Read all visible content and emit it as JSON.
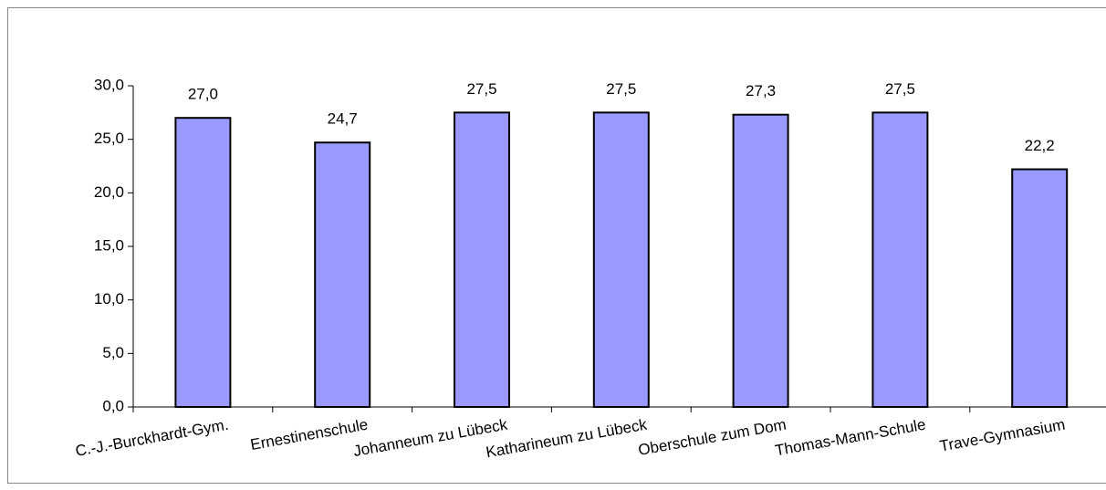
{
  "chart_data": {
    "type": "bar",
    "categories": [
      "C.-J.-Burckhardt-Gym.",
      "Ernestinenschule",
      "Johanneum zu Lübeck",
      "Katharineum zu Lübeck",
      "Oberschule zum Dom",
      "Thomas-Mann-Schule",
      "Trave-Gymnasium"
    ],
    "values": [
      27.0,
      24.7,
      27.5,
      27.5,
      27.3,
      27.5,
      22.2
    ],
    "value_labels": [
      "27,0",
      "24,7",
      "27,5",
      "27,5",
      "27,3",
      "27,5",
      "22,2"
    ],
    "color": "#9999ff",
    "ylim": [
      0,
      30
    ],
    "yticks": [
      {
        "value": 0,
        "label": "0,0"
      },
      {
        "value": 5,
        "label": "5,0"
      },
      {
        "value": 10,
        "label": "10,0"
      },
      {
        "value": 15,
        "label": "15,0"
      },
      {
        "value": 20,
        "label": "20,0"
      },
      {
        "value": 25,
        "label": "25,0"
      },
      {
        "value": 30,
        "label": "30,0"
      }
    ],
    "grid": false
  }
}
